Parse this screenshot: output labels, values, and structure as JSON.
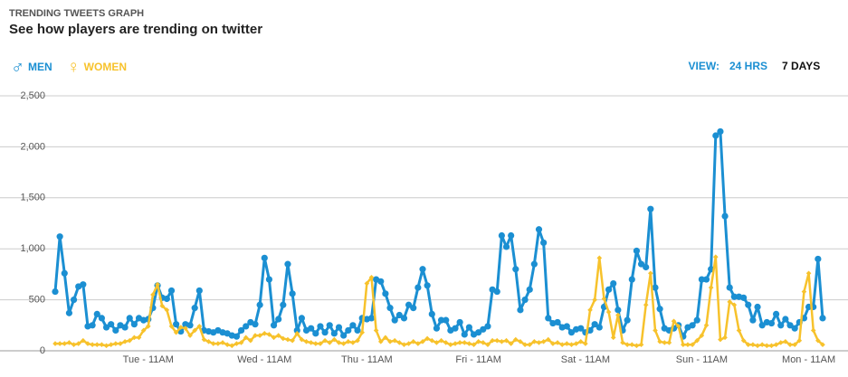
{
  "chart_data": {
    "type": "line",
    "title": "TRENDING TWEETS GRAPH",
    "subtitle": "See how players are trending on twitter",
    "view_label": "VIEW:",
    "view_options": [
      "24 HRS",
      "7 DAYS"
    ],
    "categories": [
      null,
      null,
      null,
      null,
      null,
      null,
      null,
      null,
      null,
      null,
      null,
      null,
      null,
      null,
      null,
      null,
      null,
      null,
      null,
      null,
      "Tue - 11AM",
      null,
      null,
      null,
      null,
      null,
      null,
      null,
      null,
      null,
      null,
      null,
      null,
      null,
      null,
      null,
      null,
      null,
      null,
      null,
      null,
      null,
      null,
      null,
      null,
      "Wed - 11AM",
      null,
      null,
      null,
      null,
      null,
      null,
      null,
      null,
      null,
      null,
      null,
      null,
      null,
      null,
      null,
      null,
      null,
      null,
      null,
      null,
      null,
      "Thu - 11AM",
      null,
      null,
      null,
      null,
      null,
      null,
      null,
      null,
      null,
      null,
      null,
      null,
      null,
      null,
      null,
      null,
      null,
      null,
      null,
      null,
      null,
      null,
      null,
      "Fri - 11AM",
      null,
      null,
      null,
      null,
      null,
      null,
      null,
      null,
      null,
      null,
      null,
      null,
      null,
      null,
      null,
      null,
      null,
      null,
      null,
      null,
      null,
      null,
      "Sat - 11AM",
      null,
      null,
      null,
      null,
      null,
      null,
      null,
      null,
      null,
      null,
      null,
      null,
      null,
      null,
      null,
      null,
      null,
      null,
      null,
      null,
      null,
      null,
      null,
      null,
      "Sun - 11AM",
      null,
      null,
      null,
      null,
      null,
      null,
      null,
      null,
      null,
      null,
      null,
      null,
      null,
      null,
      null,
      null,
      null,
      null,
      null,
      null,
      null,
      null,
      "Mon - 11AM",
      null,
      null,
      null
    ],
    "series": [
      {
        "name": "MEN",
        "symbol": "♂",
        "color": "#1b8fd2",
        "marker": "circle",
        "values": [
          580,
          1120,
          760,
          370,
          500,
          630,
          650,
          240,
          250,
          360,
          320,
          230,
          260,
          200,
          250,
          230,
          320,
          260,
          320,
          300,
          310,
          420,
          640,
          520,
          510,
          590,
          260,
          190,
          260,
          250,
          420,
          590,
          200,
          190,
          180,
          200,
          180,
          170,
          150,
          140,
          200,
          240,
          280,
          260,
          450,
          910,
          700,
          250,
          310,
          450,
          850,
          560,
          200,
          320,
          200,
          220,
          170,
          240,
          180,
          250,
          170,
          230,
          150,
          200,
          250,
          200,
          320,
          310,
          320,
          700,
          680,
          560,
          420,
          300,
          350,
          320,
          450,
          420,
          620,
          800,
          640,
          360,
          220,
          300,
          300,
          200,
          220,
          280,
          160,
          230,
          160,
          180,
          210,
          240,
          600,
          580,
          1130,
          1020,
          1130,
          800,
          400,
          500,
          600,
          850,
          1190,
          1060,
          320,
          270,
          280,
          230,
          240,
          180,
          210,
          220,
          180,
          200,
          260,
          230,
          430,
          600,
          660,
          400,
          200,
          300,
          700,
          980,
          850,
          820,
          1390,
          620,
          410,
          220,
          200,
          220,
          250,
          140,
          230,
          250,
          300,
          700,
          700,
          800,
          2110,
          2150,
          1320,
          620,
          530,
          530,
          520,
          450,
          300,
          430,
          250,
          280,
          270,
          360,
          250,
          310,
          250,
          220,
          280,
          320,
          430,
          430,
          900,
          320
        ]
      },
      {
        "name": "WOMEN",
        "symbol": "♀",
        "color": "#f7c22c",
        "marker": "diamond",
        "values": [
          70,
          70,
          70,
          80,
          60,
          70,
          100,
          70,
          60,
          60,
          60,
          50,
          60,
          70,
          70,
          90,
          100,
          130,
          130,
          200,
          240,
          550,
          650,
          440,
          400,
          240,
          180,
          230,
          220,
          150,
          200,
          240,
          110,
          90,
          70,
          70,
          80,
          60,
          50,
          70,
          80,
          130,
          100,
          150,
          150,
          170,
          160,
          130,
          150,
          120,
          110,
          100,
          170,
          110,
          90,
          80,
          70,
          70,
          100,
          80,
          110,
          80,
          70,
          90,
          80,
          100,
          180,
          660,
          720,
          200,
          90,
          130,
          90,
          100,
          80,
          60,
          70,
          90,
          70,
          90,
          120,
          100,
          80,
          100,
          80,
          60,
          70,
          80,
          80,
          70,
          60,
          90,
          80,
          60,
          100,
          100,
          90,
          100,
          70,
          110,
          90,
          60,
          60,
          90,
          80,
          90,
          110,
          70,
          80,
          60,
          70,
          60,
          70,
          90,
          70,
          400,
          500,
          910,
          510,
          380,
          130,
          350,
          80,
          60,
          60,
          50,
          60,
          450,
          760,
          200,
          90,
          80,
          80,
          290,
          240,
          60,
          60,
          60,
          100,
          150,
          250,
          620,
          920,
          110,
          130,
          480,
          450,
          200,
          100,
          60,
          60,
          50,
          60,
          50,
          50,
          60,
          80,
          90,
          60,
          60,
          100,
          580,
          760,
          200,
          100,
          60
        ]
      }
    ],
    "ylim": [
      0,
      2500
    ],
    "yticks": [
      0,
      500,
      {
        "value": 1000,
        "label": "1,000"
      },
      {
        "value": 1500,
        "label": "1,500"
      },
      {
        "value": 2000,
        "label": "2,000"
      },
      {
        "value": 2500,
        "label": "2,500"
      }
    ],
    "grid": true
  }
}
